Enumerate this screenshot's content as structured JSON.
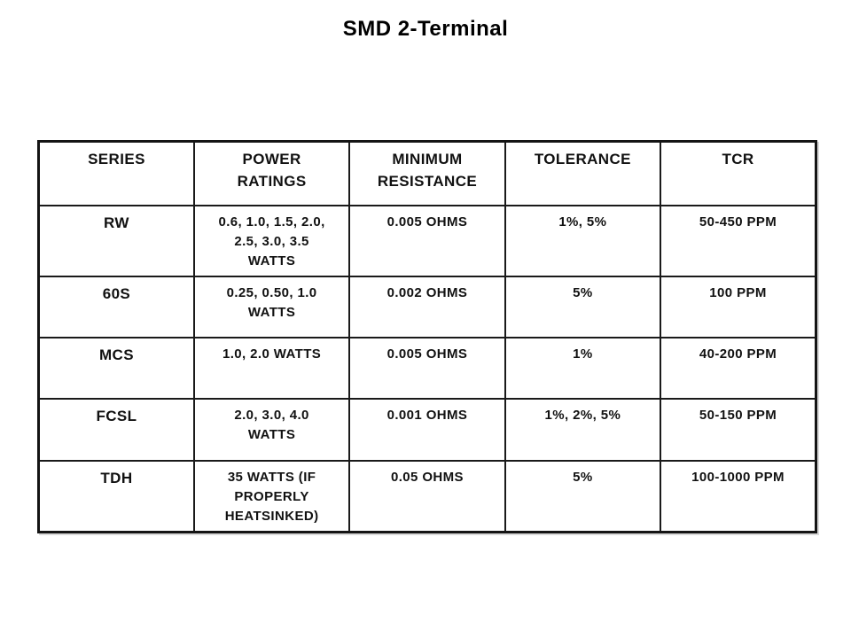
{
  "title": "SMD 2-Terminal",
  "table": {
    "columns": [
      "SERIES",
      "POWER\nRATINGS",
      "MINIMUM\nRESISTANCE",
      "TOLERANCE",
      "TCR"
    ],
    "column_keys": [
      "series",
      "power_ratings",
      "minimum_resistance",
      "tolerance",
      "tcr"
    ],
    "rows": [
      {
        "series": "RW",
        "power_ratings": "0.6, 1.0, 1.5, 2.0,\n2.5, 3.0, 3.5\nWATTS",
        "minimum_resistance": "0.005 OHMS",
        "tolerance": "1%, 5%",
        "tcr": "50-450 PPM"
      },
      {
        "series": "60S",
        "power_ratings": "0.25, 0.50, 1.0\nWATTS",
        "minimum_resistance": "0.002 OHMS",
        "tolerance": "5%",
        "tcr": "100 PPM"
      },
      {
        "series": "MCS",
        "power_ratings": "1.0, 2.0 WATTS",
        "minimum_resistance": "0.005 OHMS",
        "tolerance": "1%",
        "tcr": "40-200 PPM"
      },
      {
        "series": "FCSL",
        "power_ratings": "2.0, 3.0, 4.0\nWATTS",
        "minimum_resistance": "0.001 OHMS",
        "tolerance": "1%, 2%, 5%",
        "tcr": "50-150 PPM"
      },
      {
        "series": "TDH",
        "power_ratings": "35 WATTS (IF\nPROPERLY\nHEATSINKED)",
        "minimum_resistance": "0.05 OHMS",
        "tolerance": "5%",
        "tcr": "100-1000 PPM"
      }
    ]
  },
  "colors": {
    "background": "#ffffff",
    "text": "#111111",
    "border": "#1a1a1a"
  }
}
